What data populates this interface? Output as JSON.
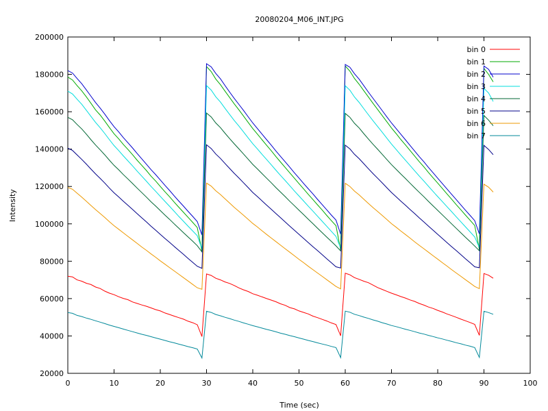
{
  "chart_data": {
    "type": "line",
    "title": "20080204_M06_INT.JPG",
    "xlabel": "Time (sec)",
    "ylabel": "Intensity",
    "xlim": [
      0,
      100
    ],
    "ylim": [
      20000,
      200000
    ],
    "xticks": [
      0,
      10,
      20,
      30,
      40,
      50,
      60,
      70,
      80,
      90,
      100
    ],
    "yticks": [
      20000,
      40000,
      60000,
      80000,
      100000,
      120000,
      140000,
      160000,
      180000,
      200000
    ],
    "grid": false,
    "legend": "top-right",
    "x": [
      0,
      1,
      2,
      3,
      4,
      5,
      6,
      7,
      8,
      9,
      10,
      11,
      12,
      13,
      14,
      15,
      16,
      17,
      18,
      19,
      20,
      21,
      22,
      23,
      24,
      25,
      26,
      27,
      28,
      29,
      30,
      31,
      32,
      33,
      34,
      35,
      36,
      37,
      38,
      39,
      40,
      41,
      42,
      43,
      44,
      45,
      46,
      47,
      48,
      49,
      50,
      51,
      52,
      53,
      54,
      55,
      56,
      57,
      58,
      59,
      60,
      61,
      62,
      63,
      64,
      65,
      66,
      67,
      68,
      69,
      70,
      71,
      72,
      73,
      74,
      75,
      76,
      77,
      78,
      79,
      80,
      81,
      82,
      83,
      84,
      85,
      86,
      87,
      88,
      89,
      90,
      91,
      92
    ],
    "series": [
      {
        "name": "bin 0",
        "color": "#ff0000",
        "values": [
          72000,
          71600,
          70000,
          69300,
          68200,
          67500,
          66200,
          65400,
          64000,
          62900,
          62100,
          61000,
          60100,
          59400,
          58200,
          57400,
          56600,
          55900,
          55000,
          54100,
          53400,
          52300,
          51500,
          50600,
          49800,
          49000,
          47900,
          47100,
          46000,
          39700,
          73200,
          72400,
          70900,
          70000,
          68900,
          68100,
          67000,
          65700,
          64700,
          63800,
          62600,
          61800,
          60900,
          60000,
          59200,
          58300,
          57200,
          56400,
          55200,
          54500,
          53400,
          52600,
          51800,
          50600,
          49800,
          48900,
          48000,
          47000,
          46100,
          40100,
          73600,
          72700,
          71200,
          70300,
          69300,
          68500,
          67200,
          65900,
          64900,
          63900,
          62900,
          62000,
          61100,
          60300,
          59300,
          58500,
          57400,
          56500,
          55500,
          54700,
          53700,
          52800,
          51800,
          50900,
          50000,
          49000,
          48100,
          47200,
          46200,
          40300,
          73400,
          72500,
          70900
        ]
      },
      {
        "name": "bin 1",
        "color": "#00aa00",
        "values": [
          178500,
          177000,
          174000,
          171200,
          168000,
          164500,
          161000,
          158200,
          155000,
          151500,
          148200,
          145500,
          142500,
          139800,
          137000,
          134000,
          131300,
          128500,
          125500,
          122900,
          120000,
          117200,
          114500,
          111600,
          108900,
          106200,
          103500,
          100800,
          98000,
          85400,
          184200,
          181500,
          177500,
          174500,
          171000,
          167600,
          164200,
          161000,
          157700,
          154300,
          151000,
          148000,
          145000,
          142000,
          139100,
          136000,
          133100,
          130200,
          127300,
          124400,
          121500,
          118700,
          115800,
          113000,
          110200,
          107400,
          104500,
          101700,
          99000,
          86000,
          184500,
          181700,
          177800,
          174700,
          171300,
          167900,
          164500,
          161200,
          157900,
          154600,
          151300,
          148300,
          145200,
          142300,
          139300,
          136300,
          133300,
          130500,
          127500,
          124600,
          121800,
          118900,
          116000,
          113200,
          110300,
          107500,
          104700,
          101900,
          99100,
          86200,
          183200,
          180000,
          176000
        ]
      },
      {
        "name": "bin 2",
        "color": "#0000cc",
        "values": [
          182000,
          180700,
          177800,
          175000,
          171700,
          168300,
          164900,
          161900,
          158700,
          155200,
          152000,
          149200,
          146200,
          143400,
          140600,
          137600,
          134800,
          131900,
          129000,
          126300,
          123500,
          120600,
          117900,
          115000,
          112200,
          109500,
          106700,
          104000,
          101200,
          94000,
          185700,
          184000,
          180500,
          177600,
          174000,
          170500,
          167100,
          163900,
          160700,
          157300,
          154000,
          151000,
          148000,
          145000,
          142100,
          139000,
          136100,
          133200,
          130300,
          127300,
          124500,
          121600,
          118800,
          116000,
          113100,
          110300,
          107500,
          104700,
          102000,
          94500,
          185300,
          183800,
          180300,
          177400,
          174000,
          170500,
          167200,
          163900,
          160600,
          157200,
          154000,
          151000,
          148000,
          145000,
          142000,
          139000,
          136000,
          133200,
          130200,
          127300,
          124400,
          121500,
          118700,
          115800,
          113000,
          110100,
          107300,
          104500,
          101700,
          94600,
          184500,
          182700,
          178500
        ]
      },
      {
        "name": "bin 3",
        "color": "#00dddd",
        "values": [
          171000,
          169500,
          166700,
          164000,
          160800,
          157500,
          154300,
          151400,
          148300,
          145000,
          141900,
          139200,
          136400,
          133700,
          131000,
          128200,
          125500,
          122800,
          120000,
          117400,
          114700,
          112000,
          109400,
          106700,
          104000,
          101400,
          98800,
          96200,
          93600,
          86600,
          174000,
          171600,
          168000,
          165200,
          161800,
          158500,
          155300,
          152300,
          149200,
          146000,
          142900,
          140100,
          137200,
          134400,
          131600,
          128700,
          125900,
          123200,
          120400,
          117600,
          114900,
          112200,
          109500,
          106800,
          104100,
          101400,
          98700,
          96000,
          93300,
          87000,
          173900,
          171500,
          167900,
          165000,
          161700,
          158400,
          155200,
          152100,
          149000,
          145800,
          142700,
          139800,
          136900,
          134100,
          131300,
          128400,
          125600,
          122900,
          120100,
          117300,
          114600,
          111900,
          109200,
          106500,
          103800,
          101100,
          98400,
          95700,
          93000,
          87200,
          172500,
          170000,
          165500
        ]
      },
      {
        "name": "bin 4",
        "color": "#006633",
        "values": [
          157000,
          155700,
          153200,
          150800,
          148000,
          145000,
          142200,
          139600,
          136900,
          134000,
          131300,
          128900,
          126400,
          124000,
          121600,
          119100,
          116700,
          114300,
          111800,
          109500,
          107100,
          104700,
          102400,
          100000,
          97700,
          95300,
          93000,
          90700,
          88300,
          85000,
          159300,
          157200,
          154000,
          151500,
          148500,
          145600,
          142800,
          140100,
          137400,
          134600,
          131800,
          129400,
          126900,
          124400,
          122000,
          119400,
          117000,
          114600,
          112100,
          109700,
          107300,
          104900,
          102500,
          100100,
          97700,
          95300,
          92900,
          90600,
          88200,
          85500,
          159100,
          157000,
          153800,
          151300,
          148300,
          145400,
          142600,
          139900,
          137200,
          134400,
          131700,
          129200,
          126700,
          124300,
          121800,
          119300,
          116900,
          114500,
          112000,
          109600,
          107200,
          104800,
          102400,
          100000,
          97600,
          95200,
          92800,
          90500,
          88100,
          85600,
          158000,
          155500,
          152500
        ]
      },
      {
        "name": "bin 5",
        "color": "#000088",
        "values": [
          140500,
          139300,
          136900,
          134500,
          132000,
          129300,
          126700,
          124300,
          121800,
          119100,
          116600,
          114400,
          112100,
          109900,
          107700,
          105400,
          103200,
          101000,
          98700,
          96600,
          94400,
          92200,
          90100,
          87900,
          85800,
          83700,
          81500,
          79400,
          77300,
          76200,
          142300,
          140300,
          137400,
          135000,
          132300,
          129600,
          127000,
          124500,
          122000,
          119400,
          116800,
          114600,
          112300,
          110000,
          107800,
          105500,
          103300,
          101000,
          98800,
          96600,
          94400,
          92200,
          90000,
          87800,
          85700,
          83500,
          81300,
          79200,
          77000,
          76400,
          142100,
          140100,
          137200,
          134900,
          132200,
          129500,
          126900,
          124400,
          121900,
          119300,
          116800,
          114500,
          112200,
          110000,
          107700,
          105500,
          103200,
          101000,
          98800,
          96600,
          94400,
          92200,
          90000,
          87800,
          85700,
          83500,
          81300,
          79200,
          77000,
          76500,
          142000,
          139800,
          137000
        ]
      },
      {
        "name": "bin 6",
        "color": "#ee9900",
        "values": [
          119500,
          118500,
          116400,
          114300,
          112100,
          109800,
          107600,
          105500,
          103400,
          101100,
          99000,
          97100,
          95200,
          93300,
          91400,
          89500,
          87600,
          85800,
          83900,
          82100,
          80200,
          78400,
          76600,
          74800,
          73000,
          71200,
          69400,
          67600,
          65800,
          65000,
          121800,
          120200,
          117700,
          115700,
          113400,
          111100,
          108800,
          106700,
          104600,
          102400,
          100200,
          98300,
          96300,
          94300,
          92400,
          90500,
          88600,
          86700,
          84800,
          82900,
          81000,
          79200,
          77300,
          75500,
          73700,
          71900,
          70100,
          68300,
          66500,
          65200,
          121700,
          120000,
          117500,
          115500,
          113200,
          110900,
          108700,
          106600,
          104500,
          102300,
          100100,
          98200,
          96200,
          94300,
          92400,
          90400,
          88500,
          86700,
          84800,
          82900,
          81100,
          79200,
          77400,
          75500,
          73700,
          71900,
          70100,
          68300,
          66500,
          65300,
          121200,
          119600,
          117000
        ]
      },
      {
        "name": "bin 7",
        "color": "#008899",
        "values": [
          52500,
          52100,
          51000,
          50400,
          49600,
          48900,
          48100,
          47400,
          46600,
          45800,
          45100,
          44400,
          43700,
          43000,
          42300,
          41600,
          40900,
          40300,
          39600,
          38900,
          38300,
          37600,
          36900,
          36300,
          35600,
          35000,
          34300,
          33700,
          33000,
          28200,
          53200,
          52600,
          51500,
          50800,
          50000,
          49300,
          48500,
          47800,
          47000,
          46300,
          45500,
          44900,
          44200,
          43500,
          42900,
          42200,
          41500,
          40900,
          40200,
          39600,
          38900,
          38300,
          37600,
          37000,
          36300,
          35700,
          35100,
          34400,
          33800,
          28400,
          53300,
          52700,
          51600,
          50900,
          50100,
          49400,
          48600,
          47900,
          47100,
          46400,
          45600,
          45000,
          44300,
          43600,
          43000,
          42300,
          41600,
          41000,
          40300,
          39700,
          39000,
          38400,
          37700,
          37100,
          36400,
          35800,
          35100,
          34500,
          33800,
          28500,
          53200,
          52500,
          51600
        ]
      }
    ]
  }
}
